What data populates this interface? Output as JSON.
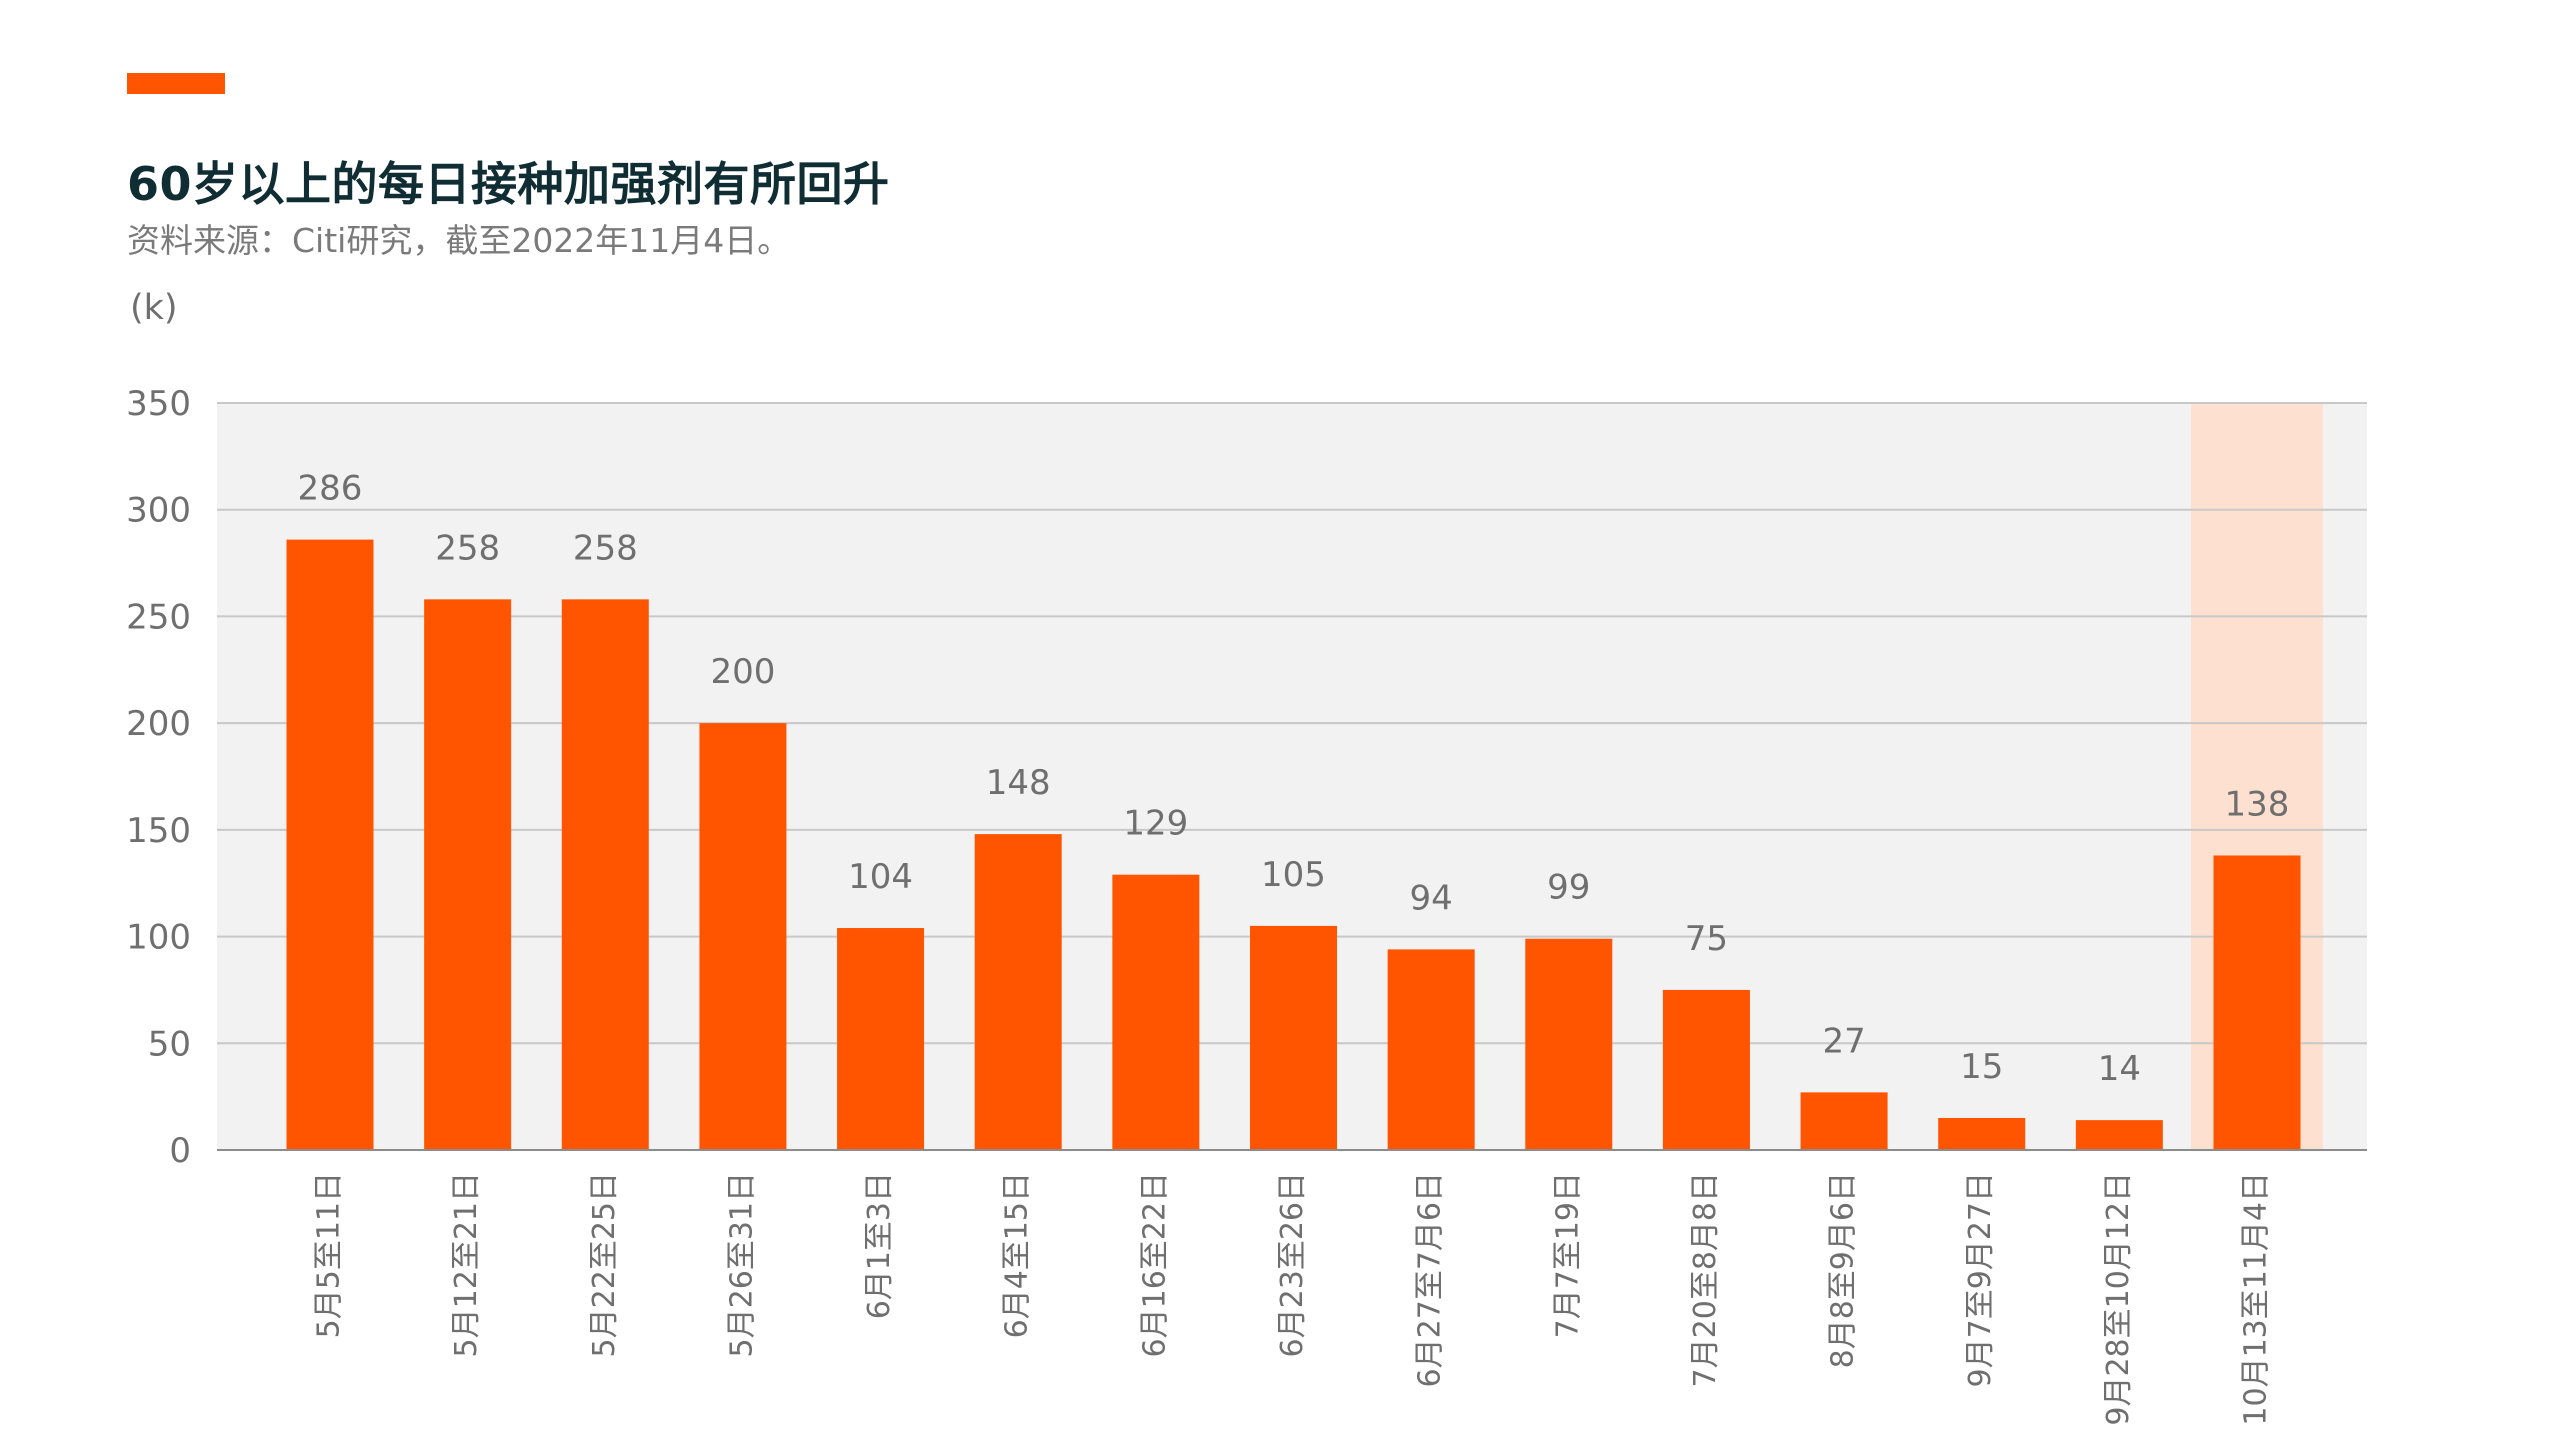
{
  "header": {
    "title": "60岁以上的每日接种加强剂有所回升",
    "subtitle": "资料来源：Citi研究，截至2022年11月4日。",
    "accent_color": "#ff5500"
  },
  "chart_data": {
    "type": "bar",
    "unit_label": "(k)",
    "categories": [
      "5月5至11日",
      "5月12至21日",
      "5月22至25日",
      "5月26至31日",
      "6月1至3日",
      "6月4至15日",
      "6月16至22日",
      "6月23至26日",
      "6月27至7月6日",
      "7月7至19日",
      "7月20至8月8日",
      "8月8至9月6日",
      "9月7至9月27日",
      "9月28至10月12日",
      "10月13至11月4日"
    ],
    "values": [
      286,
      258,
      258,
      200,
      104,
      148,
      129,
      105,
      94,
      99,
      75,
      27,
      15,
      14,
      138
    ],
    "ylim": [
      0,
      350
    ],
    "yticks": [
      0,
      50,
      100,
      150,
      200,
      250,
      300,
      350
    ],
    "grid": true,
    "highlighted_category_index": 14,
    "colors": {
      "bar": "#ff5500",
      "highlight_band": "#fde0d0",
      "plot_background": "#f2f2f2",
      "grid": "#c8c8c8",
      "axis_text": "#6f6f6f"
    }
  }
}
